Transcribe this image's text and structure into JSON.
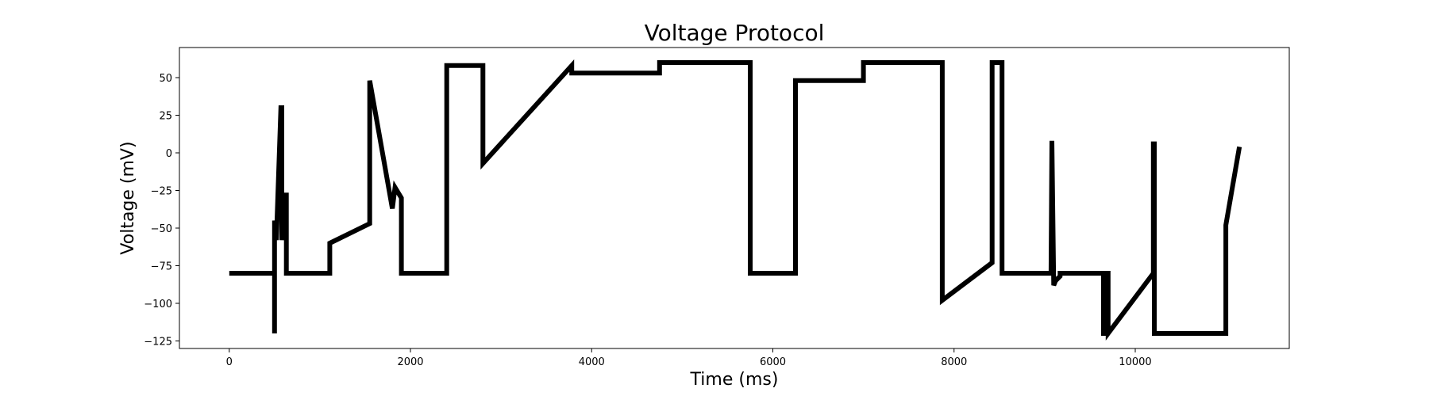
{
  "chart_data": {
    "type": "line",
    "title": "Voltage Protocol",
    "xlabel": "Time (ms)",
    "ylabel": "Voltage (mV)",
    "xlim": [
      -550,
      11700
    ],
    "ylim": [
      -130,
      70
    ],
    "xticks": [
      0,
      2000,
      4000,
      6000,
      8000,
      10000
    ],
    "xtick_labels": [
      "0",
      "2000",
      "4000",
      "6000",
      "8000",
      "10000"
    ],
    "yticks": [
      50,
      25,
      0,
      -25,
      -50,
      -75,
      -100,
      -125
    ],
    "ytick_labels": [
      "50",
      "25",
      "0",
      "−25",
      "−50",
      "−75",
      "−100",
      "−125"
    ],
    "grid": false,
    "series": [
      {
        "name": "Voltage",
        "color": "#000000",
        "x": [
          0,
          500,
          500,
          500,
          500,
          520,
          570,
          580,
          580,
          610,
          630,
          630,
          1110,
          1110,
          1550,
          1550,
          1800,
          1830,
          1900,
          1900,
          2400,
          2400,
          2800,
          2800,
          3780,
          3780,
          4750,
          4750,
          5750,
          5750,
          6250,
          6250,
          7000,
          7000,
          7870,
          7870,
          8420,
          8420,
          8530,
          8530,
          9020,
          9070,
          9080,
          9080,
          9100,
          9120,
          9170,
          9170,
          9650,
          9650,
          9670,
          9670,
          9700,
          9700,
          10200,
          10200,
          10210,
          10210,
          11000,
          11000,
          11150
        ],
        "y": [
          -80,
          -80,
          -120,
          -120,
          -45,
          -58,
          30,
          30,
          -58,
          -28,
          -28,
          -80,
          -80,
          -60,
          -47,
          48,
          -37,
          -23,
          -30,
          -80,
          -80,
          58,
          58,
          -7,
          58,
          53,
          53,
          60,
          60,
          -80,
          -80,
          48,
          48,
          60,
          60,
          -98,
          -73,
          60,
          60,
          -80,
          -80,
          -80,
          8,
          8,
          -88,
          -85,
          -82,
          -80,
          -80,
          -120,
          -120,
          -80,
          -80,
          -120,
          -80,
          6,
          6,
          -120,
          -120,
          -48,
          4
        ]
      }
    ]
  }
}
